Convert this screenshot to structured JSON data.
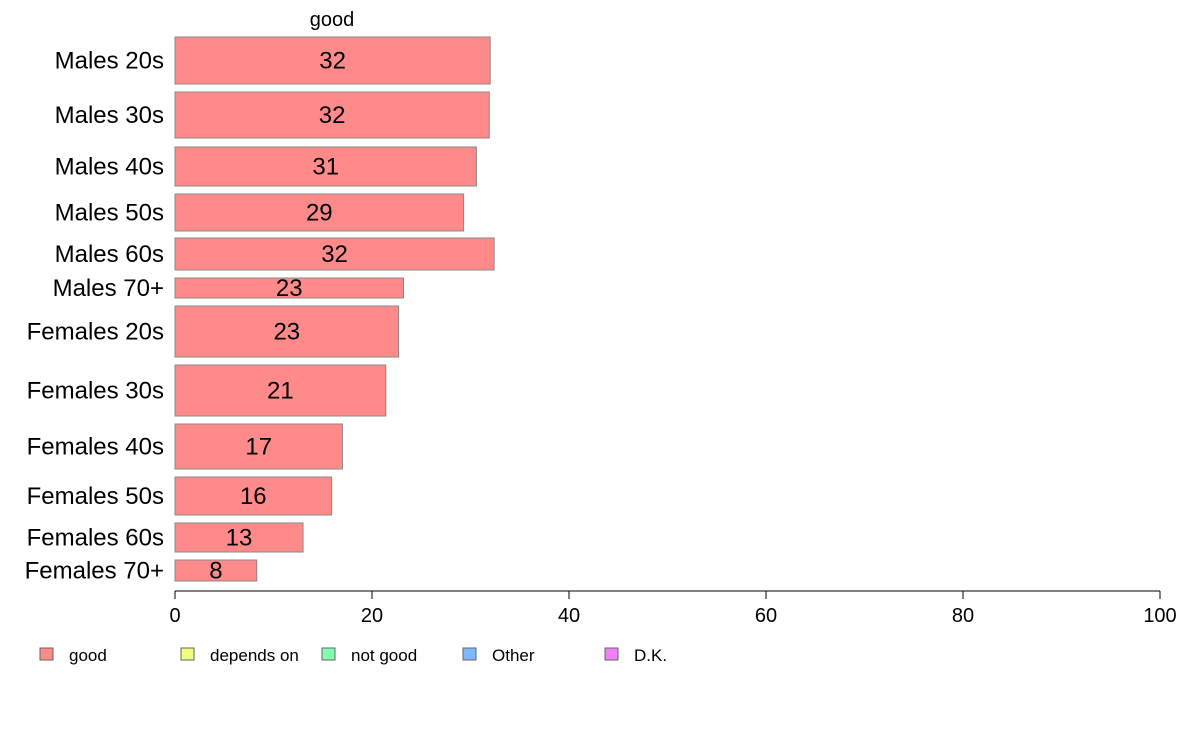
{
  "chart_data": {
    "type": "bar",
    "orientation": "horizontal",
    "column_title": "good",
    "categories": [
      "Males 20s",
      "Males 30s",
      "Males 40s",
      "Males 50s",
      "Males 60s",
      "Males 70+",
      "Females 20s",
      "Females 30s",
      "Females 40s",
      "Females 50s",
      "Females 60s",
      "Females 70+"
    ],
    "values": [
      32,
      32,
      31,
      29,
      32,
      23,
      23,
      21,
      17,
      16,
      13,
      8
    ],
    "bar_widths": [
      32.0,
      31.9,
      30.6,
      29.3,
      32.4,
      23.2,
      22.7,
      21.4,
      17.0,
      15.9,
      13.0,
      8.3
    ],
    "xlim": [
      0,
      100
    ],
    "xticks": [
      "0",
      "20",
      "40",
      "60",
      "80",
      "100"
    ],
    "xtick_values": [
      0,
      20,
      40,
      60,
      80,
      100
    ],
    "legend": {
      "placement": "bottom",
      "items": [
        {
          "label": "good",
          "color": "#ff8a8a"
        },
        {
          "label": "depends on",
          "color": "#eeff80"
        },
        {
          "label": "not good",
          "color": "#80ffb0"
        },
        {
          "label": "Other",
          "color": "#80b8ff"
        },
        {
          "label": "D.K.",
          "color": "#f080f5"
        }
      ]
    },
    "bar_color": "#ff8a8a",
    "bar_border_color": "#888888",
    "grid": false
  }
}
